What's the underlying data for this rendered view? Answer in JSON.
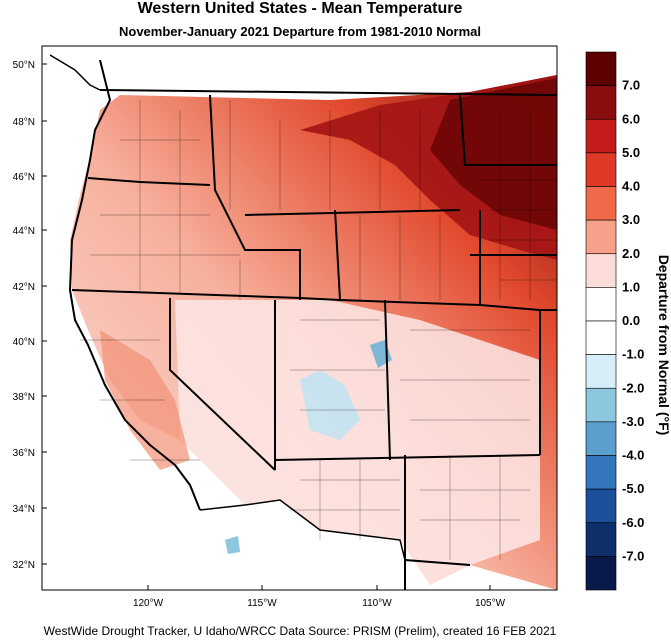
{
  "map": {
    "title": "Western United States - Mean Temperature",
    "subtitle": "November-January 2021  Departure from 1981-2010 Normal",
    "footer": "WestWide Drought Tracker, U Idaho/WRCC Data Source: PRISM (Prelim), created 16 FEB 2021",
    "lat_labels": [
      "50°N",
      "48°N",
      "46°N",
      "44°N",
      "42°N",
      "40°N",
      "38°N",
      "36°N",
      "34°N",
      "32°N"
    ],
    "lon_labels": [
      "120°W",
      "115°W",
      "110°W",
      "105°W"
    ],
    "colorbar": {
      "title": "Departure from Normal (°F)",
      "labels": [
        "7.0",
        "6.0",
        "5.0",
        "4.0",
        "3.0",
        "2.0",
        "1.0",
        "0.0",
        "-1.0",
        "-2.0",
        "-3.0",
        "-4.0",
        "-5.0",
        "-6.0",
        "-7.0"
      ],
      "colors": [
        "#5c0000",
        "#8a0d0d",
        "#c41c1c",
        "#df3a26",
        "#f06a4a",
        "#f7a18b",
        "#fbdcd9",
        "#ffffff",
        "#ffffff",
        "#d6eef8",
        "#8cc7de",
        "#5a9fce",
        "#3577bd",
        "#1b4f99",
        "#0f2f6b",
        "#08194a"
      ]
    }
  }
}
